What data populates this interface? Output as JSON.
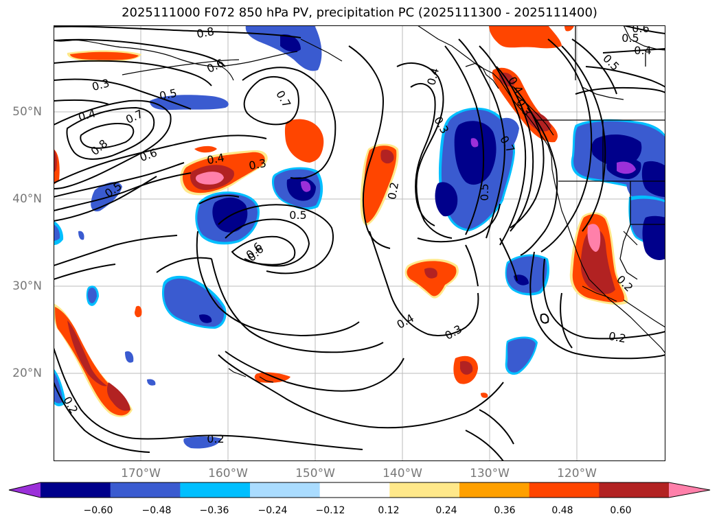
{
  "title": "2025111000 F072 850 hPa PV, precipitation PC (2025111300 - 2025111400)",
  "latitude_labels": [
    "50°N",
    "40°N",
    "30°N",
    "20°N"
  ],
  "longitude_labels": [
    "170°W",
    "160°W",
    "150°W",
    "140°W",
    "130°W",
    "120°W"
  ],
  "colorbar": {
    "ticks": [
      "−0.60",
      "−0.48",
      "−0.36",
      "−0.24",
      "−0.12",
      "0.12",
      "0.24",
      "0.36",
      "0.48",
      "0.60"
    ],
    "colors": [
      "#9b30d9",
      "#00008b",
      "#3a5bd0",
      "#00bfff",
      "#aadcff",
      "#ffffff",
      "#ffe88a",
      "#ffa000",
      "#ff4500",
      "#b22222",
      "#ff80aa"
    ]
  },
  "contour_labels": [
    "0.8",
    "0.6",
    "0.3",
    "0.5",
    "0.4",
    "0.7",
    "0.8",
    "0.6",
    "0.7",
    "0.5",
    "0.4",
    "0.3",
    "0.5",
    "0.6",
    "0.2",
    "0.4",
    "0.3",
    "0.5",
    "0.2",
    "0.4",
    "0.3",
    "0.2",
    "0.2",
    "0.4",
    "0.3",
    "0.7",
    "0.6",
    "0.5",
    "0.4",
    "0.6",
    "0.5",
    "0.2"
  ]
}
